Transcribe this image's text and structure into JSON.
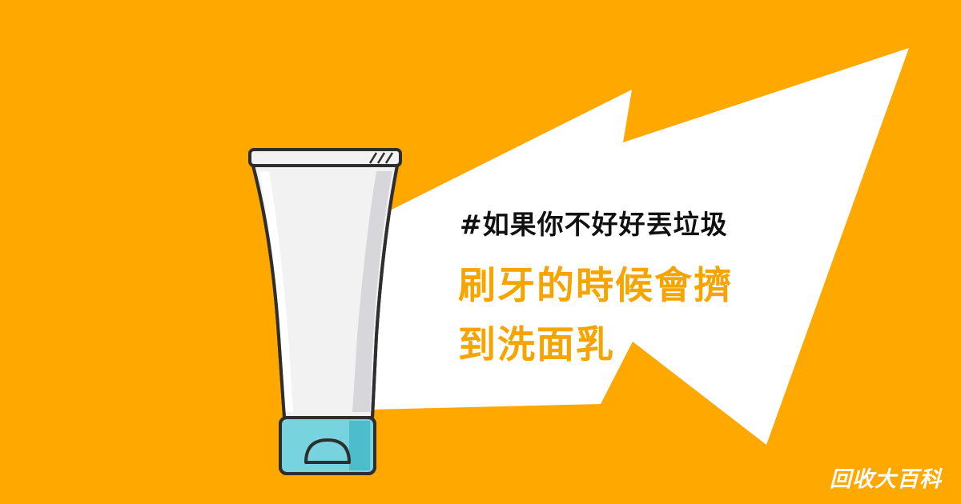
{
  "colors": {
    "background": "#FFA800",
    "burst": "#FFFFFF",
    "accent_text": "#F6A400",
    "outline": "#2E2E2E",
    "tube_body": "#F2F2F2",
    "tube_shade": "#D7D7DB",
    "cap": "#77D4DF",
    "cap_dark": "#4EBDCB"
  },
  "hashtag": "#如果你不好好丟垃圾",
  "headline": {
    "line1": "刷牙的時候會擠",
    "line2": "到洗面乳"
  },
  "brand": "回收大百科",
  "illustration": {
    "subject": "cleanser-tube-icon"
  }
}
